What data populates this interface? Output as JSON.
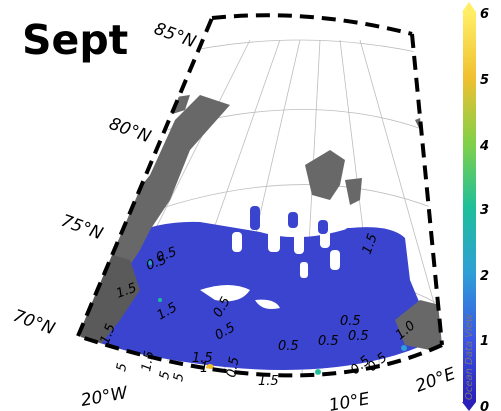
{
  "panel_title": "Sept",
  "latitude_labels": [
    "85°N",
    "80°N",
    "75°N",
    "70°N"
  ],
  "longitude_labels": [
    "20°W",
    "10°E",
    "20°E"
  ],
  "contour_labels": [
    "0.5",
    "0.5",
    "1.5",
    "1.5",
    "0.5",
    "0.5",
    "0.5",
    "0.5",
    "0.5",
    "1.5",
    "1.5",
    "1",
    "5",
    "1.5",
    "0.5",
    "1.5",
    "5",
    "5",
    "1.0",
    "0.5",
    "0.5",
    "1.5",
    "0.5"
  ],
  "colorbar": {
    "ticks": [
      "0",
      "1",
      "2",
      "3",
      "4",
      "5",
      "6"
    ],
    "brand": "Ocean Data View",
    "colors": [
      "#2a1fb8",
      "#3b55e6",
      "#2f9fd6",
      "#1fbf9a",
      "#7fd04a",
      "#f0c030",
      "#ffee66"
    ]
  },
  "colors": {
    "land": "#686868",
    "ocean_data": "#3a44cf",
    "frame": "#000000"
  }
}
